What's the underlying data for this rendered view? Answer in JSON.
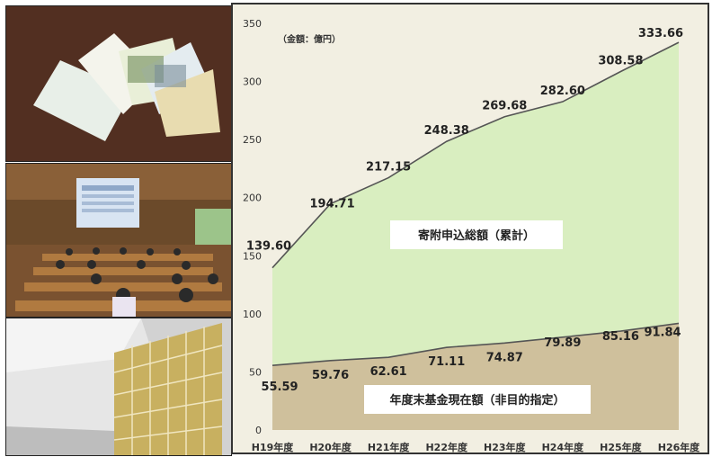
{
  "chart_data": {
    "type": "area",
    "unit_note": "（金額：億円）",
    "categories": [
      "H19年度",
      "H20年度",
      "H21年度",
      "H22年度",
      "H23年度",
      "H24年度",
      "H25年度",
      "H26年度"
    ],
    "ylim": [
      0,
      350
    ],
    "yticks": [
      0,
      50,
      100,
      150,
      200,
      250,
      300,
      350
    ],
    "grid": false,
    "series": [
      {
        "name": "寄附申込総額（累計）",
        "values": [
          139.6,
          194.71,
          217.15,
          248.38,
          269.68,
          282.6,
          308.58,
          333.66
        ],
        "labels": [
          "139.60",
          "194.71",
          "217.15",
          "248.38",
          "269.68",
          "282.60",
          "308.58",
          "333.66"
        ],
        "color": "#d9eec0"
      },
      {
        "name": "年度末基金現在額（非目的指定）",
        "values": [
          55.59,
          59.76,
          62.61,
          71.11,
          74.87,
          79.89,
          85.16,
          91.84
        ],
        "labels": [
          "55.59",
          "59.76",
          "62.61",
          "71.11",
          "74.87",
          "79.89",
          "85.16",
          "91.84"
        ],
        "color": "#cfc09c"
      }
    ]
  },
  "colors": {
    "panel_bg": "#f2efe2",
    "line": "#555555"
  }
}
